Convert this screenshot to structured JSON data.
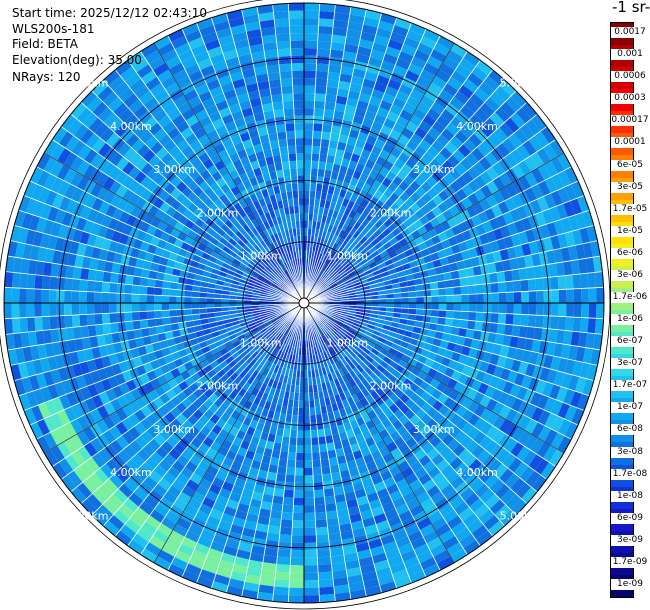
{
  "header": {
    "start_time": "Start time: 2025/12/12 02:43:10",
    "instrument": "WLS200s-181",
    "field": "Field: BETA",
    "elevation": "Elevation(deg): 35.00",
    "nrays": "NRays: 120"
  },
  "chart_data": {
    "type": "heatmap",
    "projection": "polar",
    "field": "BETA",
    "unit_fragment": "-1 sr-",
    "n_rays": 120,
    "max_range_km": 5.0,
    "range_rings_km": [
      1,
      2,
      3,
      4,
      5
    ],
    "range_labels": [
      "1.00km",
      "2.00km",
      "3.00km",
      "4.00km",
      "5.00km"
    ],
    "colorbar": {
      "ticks": [
        "0.0017",
        "0.001",
        "0.0006",
        "0.0003",
        "0.00017",
        "0.0001",
        "6e-05",
        "3e-05",
        "1.7e-05",
        "1e-05",
        "6e-06",
        "3e-06",
        "1.7e-06",
        "1e-06",
        "6e-07",
        "3e-07",
        "1.7e-07",
        "1e-07",
        "6e-08",
        "3e-08",
        "1.7e-08",
        "1e-08",
        "6e-09",
        "3e-09",
        "1.7e-09",
        "1e-09"
      ],
      "colors": [
        "#8b0000",
        "#b00000",
        "#d40000",
        "#f00000",
        "#ff3000",
        "#ff5a00",
        "#ff7f00",
        "#ffa000",
        "#ffc000",
        "#ffe000",
        "#f0f020",
        "#c8f050",
        "#a0f080",
        "#78f0a0",
        "#50e8c8",
        "#30d8e8",
        "#20c0f0",
        "#10a8f0",
        "#1090e8",
        "#1070e0",
        "#1050e0",
        "#1030d8",
        "#1818c8",
        "#1010b0",
        "#0a0a90",
        "#050570"
      ]
    },
    "dominant_levels": [
      "1e-07",
      "6e-08",
      "3e-08"
    ],
    "enhanced_arc": {
      "range_km": 4.6,
      "azimuth_deg": [
        180,
        250
      ],
      "level": "1e-06"
    }
  }
}
